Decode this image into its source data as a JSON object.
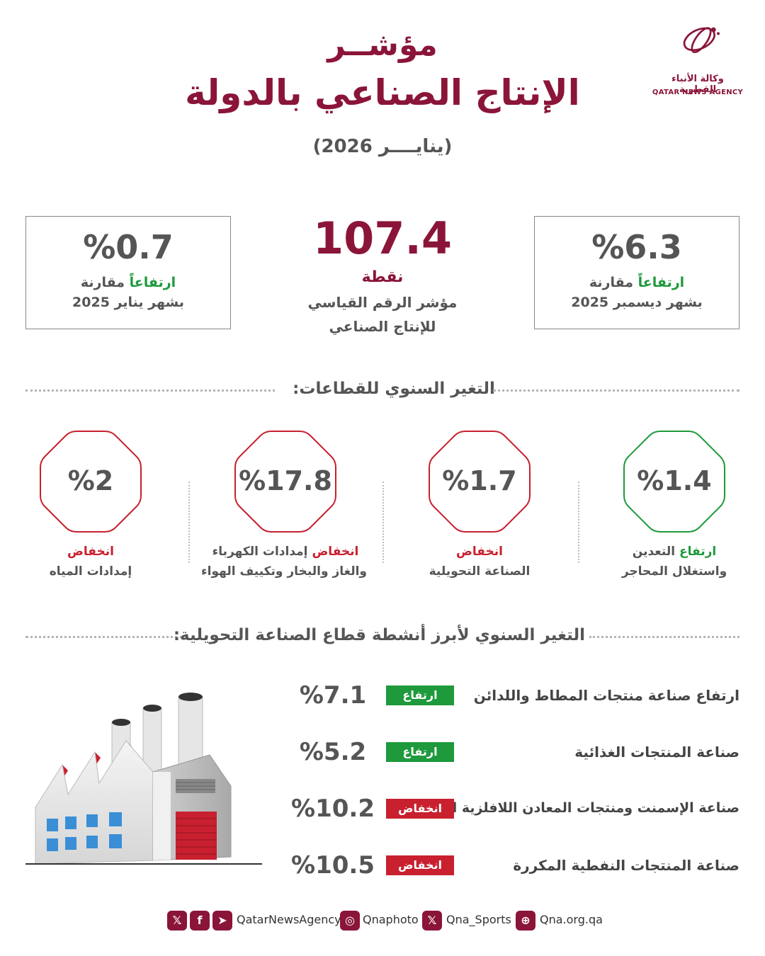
{
  "header": {
    "title_line1": "مؤشــر",
    "title_line2": "الإنتاج الصناعي بالدولة",
    "subtitle": "(ينايــــر 2026)"
  },
  "logo": {
    "arabic": "وكالة الأنباء القطرية",
    "english": "QATAR NEWS AGENCY"
  },
  "stats": {
    "monthly": {
      "value": "%6.3",
      "direction": "ارتفاعاً",
      "rest": " مقارنة",
      "line2": "بشهر ديسمبر 2025"
    },
    "index": {
      "value": "107.4",
      "unit": "نقطة",
      "line1": "مؤشر الرقم القياسي",
      "line2": "للإنتاج الصناعي"
    },
    "yearly": {
      "value": "%0.7",
      "direction": "ارتفاعاً",
      "rest": " مقارنة",
      "line2": "بشهر يناير 2025"
    }
  },
  "sections": {
    "sectors_title": "التغير السنوي للقطاعات:",
    "activities_title": "التغير السنوي لأبرز أنشطة قطاع الصناعة التحويلية:"
  },
  "sectors": [
    {
      "value": "%1.4",
      "direction": "ارتفاع",
      "name_a": " التعدين",
      "name_b": "واستغلال المحاجر",
      "trend": "up"
    },
    {
      "value": "%1.7",
      "direction": "انخفاض",
      "name_a": "",
      "name_b": "الصناعة التحويلية",
      "trend": "down"
    },
    {
      "value": "%17.8",
      "direction": "انخفاض",
      "name_a": " إمدادات الكهرباء",
      "name_b": "والغاز والبخار وتكييف الهواء",
      "trend": "down"
    },
    {
      "value": "%2",
      "direction": "انخفاض",
      "name_a": "",
      "name_b": "إمدادات المياه",
      "trend": "down"
    }
  ],
  "activities": [
    {
      "name": "ارتفاع صناعة منتجات المطاط واللدائن",
      "badge": "ارتفاع",
      "value": "%7.1",
      "trend": "up"
    },
    {
      "name": "صناعة المنتجات الغذائية",
      "badge": "ارتفاع",
      "value": "%5.2",
      "trend": "up"
    },
    {
      "name": "صناعة الإسمنت ومنتجات المعادن اللافلزية الأخرى",
      "badge": "انخفاض",
      "value": "%10.2",
      "trend": "down"
    },
    {
      "name": "صناعة المنتجات النفطية المكررة",
      "badge": "انخفاض",
      "value": "%10.5",
      "trend": "down"
    }
  ],
  "footer": {
    "handle_main": "QatarNewsAgency",
    "handle_photo": "Qnaphoto",
    "handle_sports": "Qna_Sports",
    "website": "Qna.org.qa"
  },
  "colors": {
    "brand": "#8a1538",
    "up": "#1e9a3c",
    "down": "#c8202f"
  }
}
